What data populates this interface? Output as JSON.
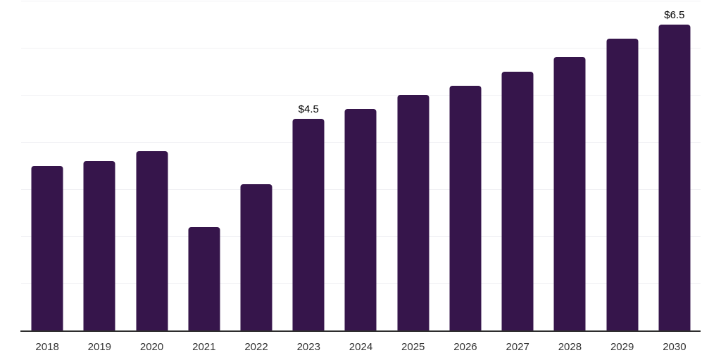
{
  "chart_data": {
    "type": "bar",
    "categories": [
      "2018",
      "2019",
      "2020",
      "2021",
      "2022",
      "2023",
      "2024",
      "2025",
      "2026",
      "2027",
      "2028",
      "2029",
      "2030"
    ],
    "values": [
      3.5,
      3.6,
      3.8,
      2.2,
      3.1,
      4.5,
      4.7,
      5.0,
      5.2,
      5.5,
      5.8,
      6.2,
      6.5
    ],
    "data_labels": [
      "",
      "",
      "",
      "",
      "",
      "$4.5",
      "",
      "",
      "",
      "",
      "",
      "",
      "$6.5"
    ],
    "xlabel": "",
    "ylabel": "",
    "ylim": [
      0,
      7
    ],
    "grid": true,
    "grid_step": 1,
    "legend": "none",
    "bar_color": "#36154B",
    "grid_color": "#f1f1f4",
    "axis_line_color": "#2e2e2e",
    "tick_label_color": "#333333",
    "value_label_color": "#000000",
    "background": "#ffffff"
  }
}
